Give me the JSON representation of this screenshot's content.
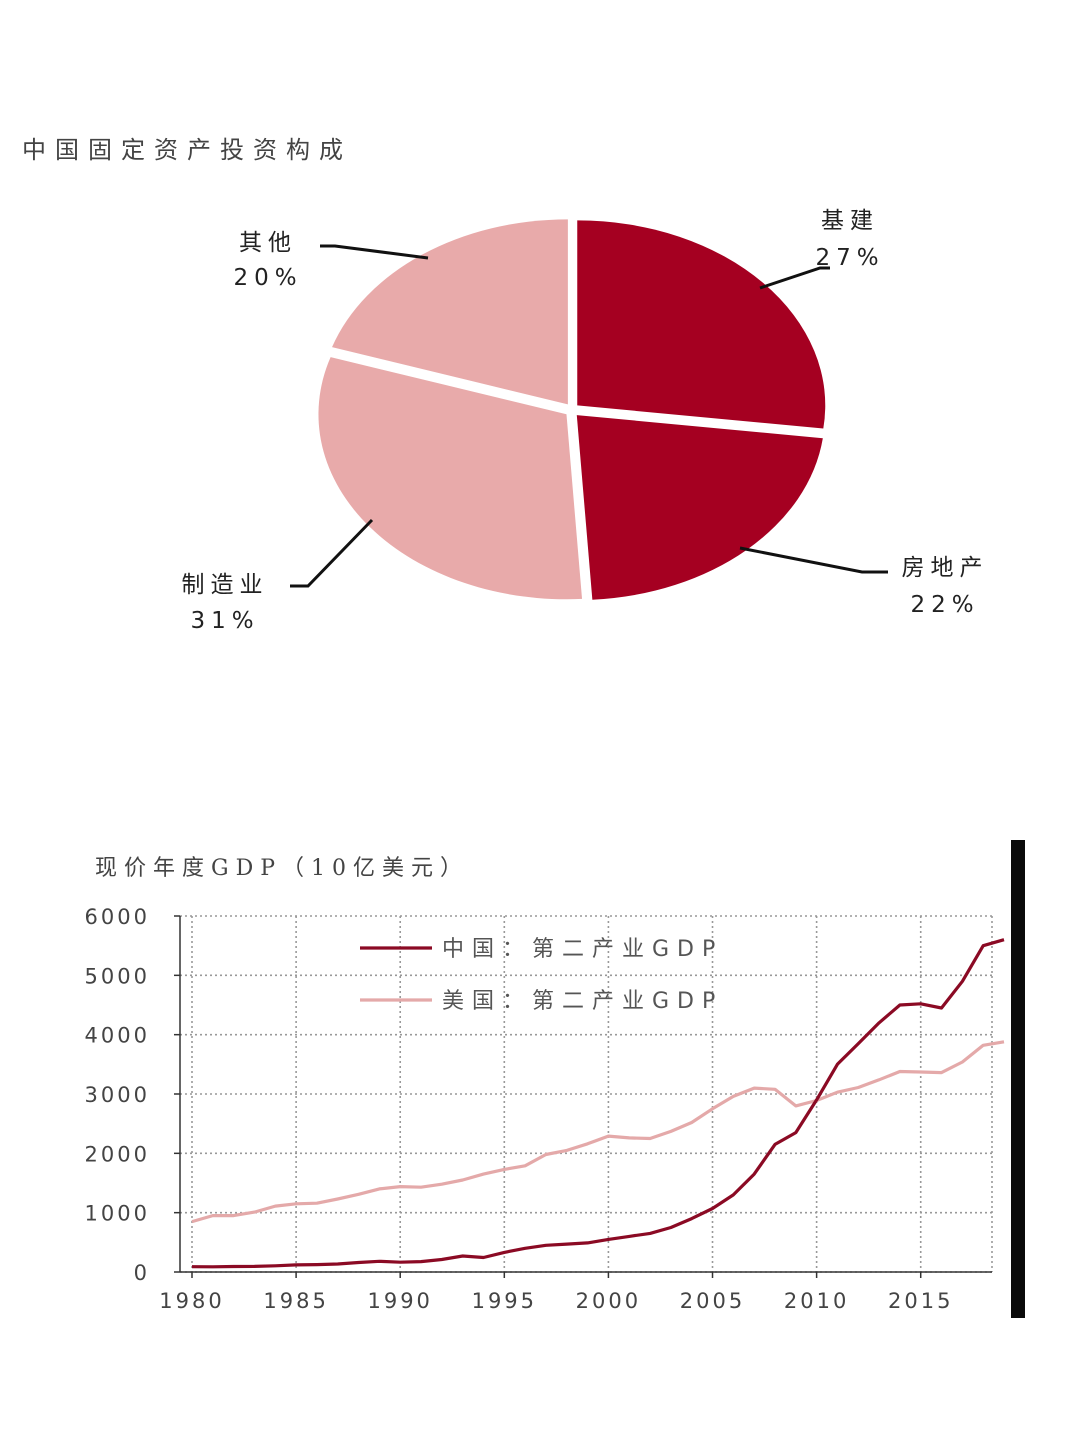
{
  "chart_data": [
    {
      "type": "pie",
      "title": "中国固定资产投资构成",
      "slices": [
        {
          "label": "基建",
          "value": 27,
          "pct_text": "27%",
          "color": "#a50021"
        },
        {
          "label": "房地产",
          "value": 22,
          "pct_text": "22%",
          "color": "#a50021"
        },
        {
          "label": "制造业",
          "value": 31,
          "pct_text": "31%",
          "color": "#e8aaaa"
        },
        {
          "label": "其他",
          "value": 20,
          "pct_text": "20%",
          "color": "#e8aaaa"
        }
      ]
    },
    {
      "type": "line",
      "title": "现价年度GDP（10亿美元）",
      "xlim": [
        1980,
        2019
      ],
      "ylim": [
        0,
        6000
      ],
      "xticks": [
        1980,
        1985,
        1990,
        1995,
        2000,
        2005,
        2010,
        2015
      ],
      "yticks": [
        0,
        1000,
        2000,
        3000,
        4000,
        5000,
        6000
      ],
      "grid": true,
      "legend_position": "top-left",
      "x": [
        1980,
        1981,
        1982,
        1983,
        1984,
        1985,
        1986,
        1987,
        1988,
        1989,
        1990,
        1991,
        1992,
        1993,
        1994,
        1995,
        1996,
        1997,
        1998,
        1999,
        2000,
        2001,
        2002,
        2003,
        2004,
        2005,
        2006,
        2007,
        2008,
        2009,
        2010,
        2011,
        2012,
        2013,
        2014,
        2015,
        2016,
        2017,
        2018,
        2019
      ],
      "series": [
        {
          "name": "中国：第二产业GDP",
          "color": "#8b0a24",
          "values": [
            90,
            88,
            92,
            95,
            105,
            120,
            125,
            135,
            160,
            180,
            165,
            175,
            210,
            270,
            245,
            330,
            400,
            450,
            470,
            490,
            550,
            600,
            650,
            750,
            900,
            1070,
            1300,
            1650,
            2150,
            2350,
            2900,
            3500,
            3850,
            4200,
            4500,
            4520,
            4450,
            4900,
            5500,
            5600
          ]
        },
        {
          "name": "美国：第二产业GDP",
          "color": "#e4a9a9",
          "values": [
            850,
            950,
            950,
            1010,
            1110,
            1150,
            1160,
            1230,
            1310,
            1400,
            1440,
            1430,
            1480,
            1550,
            1650,
            1730,
            1790,
            1980,
            2050,
            2160,
            2290,
            2260,
            2250,
            2370,
            2520,
            2750,
            2960,
            3100,
            3080,
            2800,
            2890,
            3030,
            3110,
            3240,
            3380,
            3370,
            3360,
            3540,
            3820,
            3880
          ]
        }
      ]
    }
  ]
}
